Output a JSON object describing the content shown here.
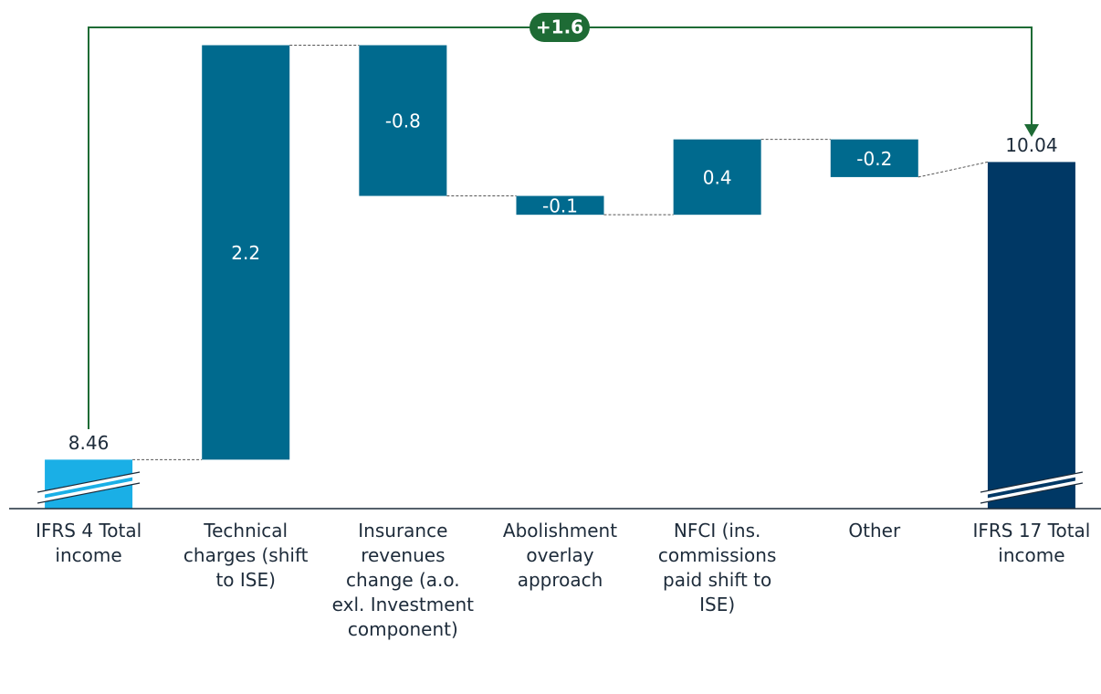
{
  "chart_data": {
    "type": "waterfall",
    "categories": [
      "IFRS 4 Total income",
      "Technical charges (shift to ISE)",
      "Insurance revenues change (a.o. exl. Investment component)",
      "Abolishment overlay approach",
      "NFCI (ins. commissions paid shift to ISE)",
      "Other",
      "IFRS 17 Total income"
    ],
    "values": [
      8.46,
      2.2,
      -0.8,
      -0.1,
      0.4,
      -0.2,
      10.04
    ],
    "colors": [
      "#1aafe6",
      "#006a8e",
      "#006a8e",
      "#006a8e",
      "#006a8e",
      "#006a8e",
      "#003865"
    ],
    "ylim": [
      8.2,
      10.9
    ],
    "annotation": "+1.6",
    "axis_break": true
  }
}
